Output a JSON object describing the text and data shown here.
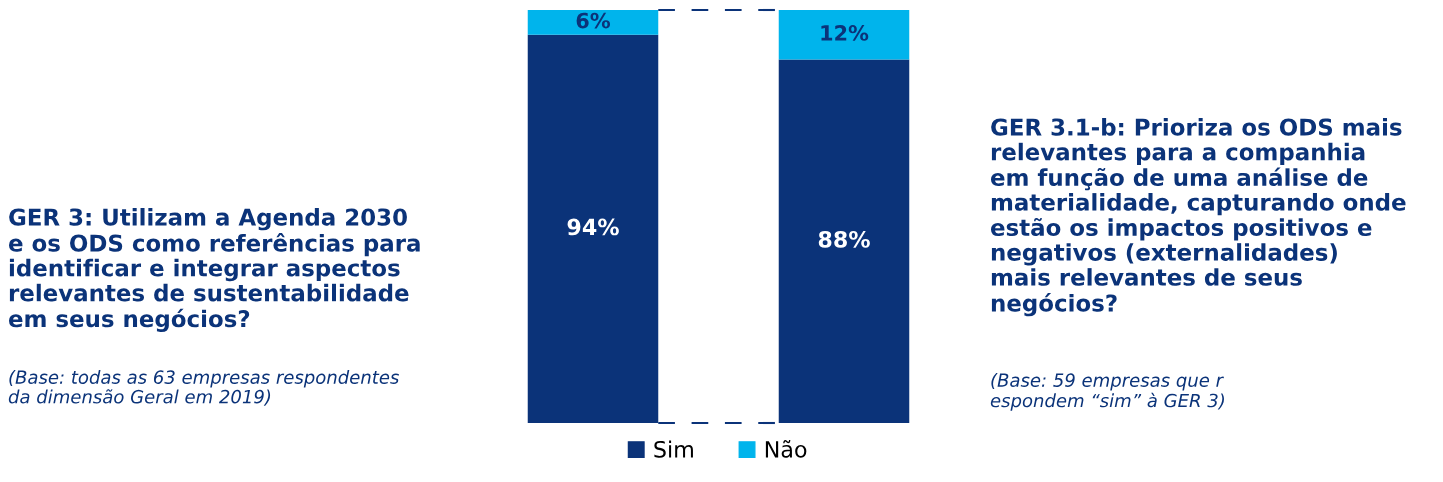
{
  "chart_data": {
    "type": "bar",
    "stacked": true,
    "categories": [
      null,
      null
    ],
    "series": [
      {
        "name": "Sim",
        "color": "#0b3379",
        "values": [
          94,
          88
        ],
        "value_labels": [
          "94%",
          "88%"
        ]
      },
      {
        "name": "Não",
        "color": "#00b4ec",
        "values": [
          6,
          12
        ],
        "value_labels": [
          "6%",
          "12%"
        ]
      }
    ],
    "legend": "bottom",
    "annotations": [
      "GER 3: Utilizam a Agenda 2030\ne os ODS como referências para\nidentificar e integrar aspectos\nrelevantes de sustentabilidade\nem seus negócios?",
      "(Base: todas as 63 empresas respondentes\nda dimensão Geral em 2019)",
      "GER 3.1-b: Prioriza os ODS mais\nrelevantes para a companhia\nem função de uma análise de\nmaterialidade, capturando onde\nestão os impactos positivos e\nnegativos (externalidades)\nmais relevantes de seus\nnegócios?",
      "(Base: 59 empresas que r\nespondem “sim” à GER 3)"
    ]
  }
}
